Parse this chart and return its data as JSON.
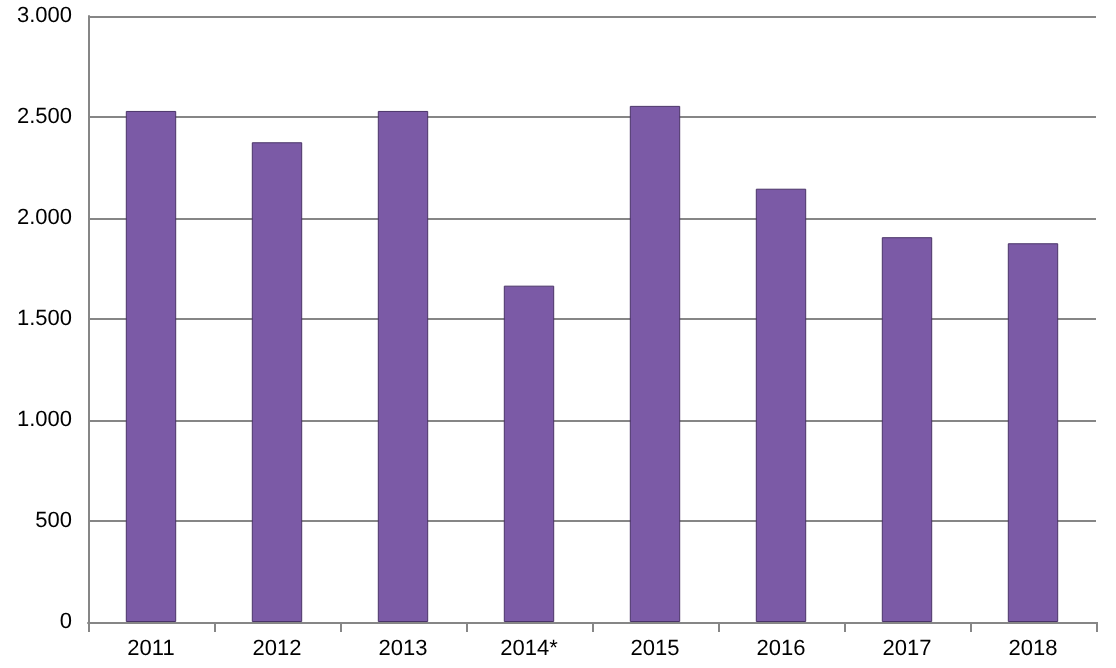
{
  "chart_data": {
    "type": "bar",
    "categories": [
      "2011",
      "2012",
      "2013",
      "2014*",
      "2015",
      "2016",
      "2017",
      "2018"
    ],
    "values": [
      2530,
      2375,
      2530,
      1665,
      2555,
      2145,
      1905,
      1875
    ],
    "color": "#7b5aa6",
    "ylim": [
      0,
      3000
    ],
    "yticks": [
      {
        "value": 0,
        "label": "0"
      },
      {
        "value": 500,
        "label": "500"
      },
      {
        "value": 1000,
        "label": "1.000"
      },
      {
        "value": 1500,
        "label": "1.500"
      },
      {
        "value": 2000,
        "label": "2.000"
      },
      {
        "value": 2500,
        "label": "2.500"
      },
      {
        "value": 3000,
        "label": "3.000"
      }
    ],
    "grid": "y"
  }
}
